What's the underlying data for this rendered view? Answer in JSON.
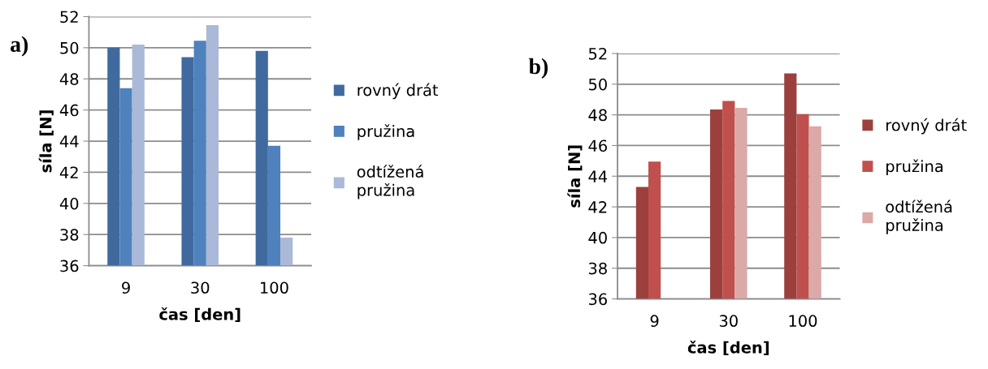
{
  "chart_data": [
    {
      "type": "bar",
      "annotations": [
        "a)"
      ],
      "xlabel": "čas [den]",
      "ylabel": "síla [N]",
      "categories": [
        "9",
        "30",
        "100"
      ],
      "series": [
        {
          "name": "rovný drát",
          "color": "#406a9e",
          "values": [
            50.0,
            49.4,
            49.8
          ]
        },
        {
          "name": "pružina",
          "color": "#4f81bd",
          "values": [
            47.4,
            50.45,
            43.7
          ]
        },
        {
          "name": "odtížená\npružina",
          "color": "#aab9d7",
          "values": [
            50.2,
            51.45,
            37.8
          ]
        }
      ],
      "ylim": [
        36,
        52
      ],
      "yticks": [
        36,
        38,
        40,
        42,
        44,
        46,
        48,
        50,
        52
      ],
      "grid": "y",
      "legend": "right"
    },
    {
      "type": "bar",
      "annotations": [
        "b)"
      ],
      "xlabel": "čas [den]",
      "ylabel": "síla [N]",
      "categories": [
        "9",
        "30",
        "100"
      ],
      "series": [
        {
          "name": "rovný drát",
          "color": "#9c403e",
          "values": [
            43.3,
            48.35,
            50.7
          ]
        },
        {
          "name": "pružina",
          "color": "#c0504d",
          "values": [
            44.95,
            48.9,
            48.05
          ]
        },
        {
          "name": "odtížená\npružina",
          "color": "#dba9a8",
          "values": [
            null,
            48.45,
            47.25
          ]
        }
      ],
      "ylim": [
        36,
        52
      ],
      "yticks": [
        36,
        38,
        40,
        42,
        44,
        46,
        48,
        50,
        52
      ],
      "grid": "y",
      "legend": "right"
    }
  ]
}
